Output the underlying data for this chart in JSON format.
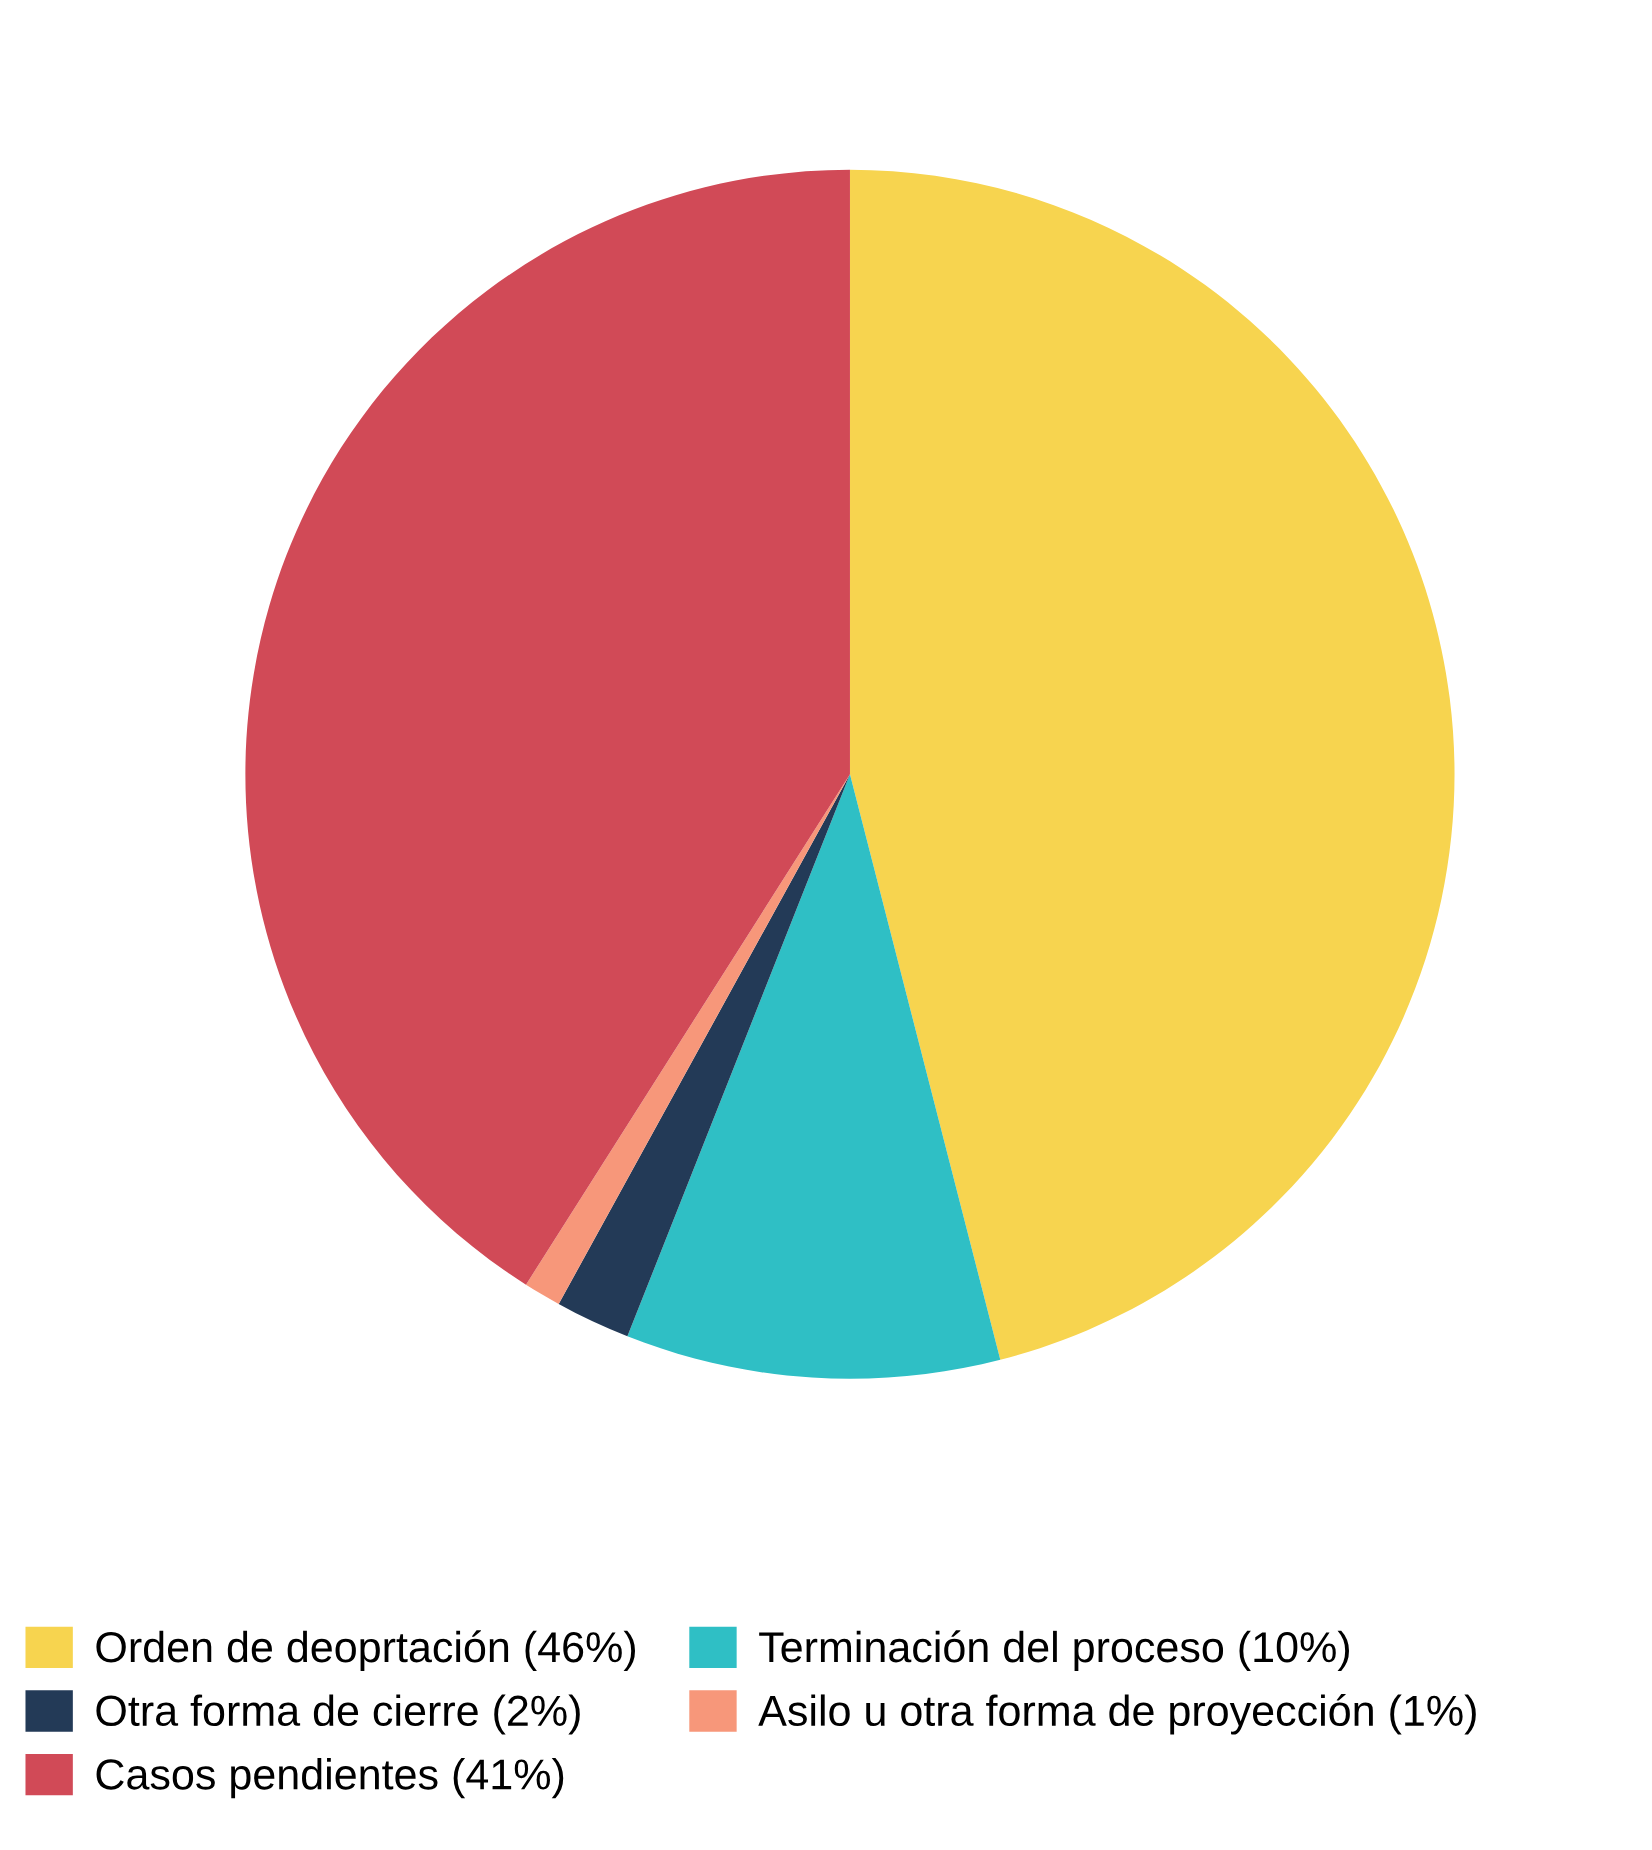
{
  "chart_data": {
    "type": "pie",
    "categories": [
      "Orden de deoprtación (46%)",
      "Terminación del proceso (10%)",
      "Otra forma de cierre (2%)",
      "Asilo u otra forma de proyección (1%)",
      "Casos pendientes (41%)"
    ],
    "values": [
      46,
      10,
      2,
      1,
      41
    ],
    "colors": [
      "#f7d44f",
      "#2fbfc5",
      "#233a57",
      "#f7977a",
      "#d14a57"
    ],
    "legend": "bottom"
  }
}
